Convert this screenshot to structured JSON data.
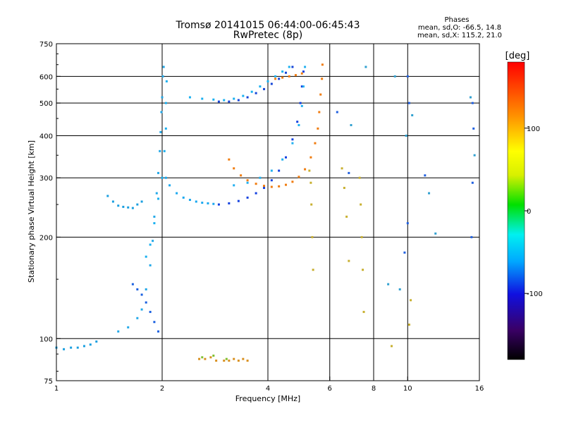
{
  "header": {
    "title_line1": "Tromsø 20141015 06:44:00-06:45:43",
    "title_line2": "RwPretec (8p)",
    "stats_title": "Phases",
    "stats_o": "mean, sd,O: -66.5, 14.8",
    "stats_x": "mean, sd,X: 115.2, 21.0"
  },
  "chart_data": {
    "type": "scatter",
    "xlabel": "Frequency [MHz]",
    "ylabel": "Stationary phase Virtual Height [km]",
    "x_scale": "log",
    "y_scale": "log",
    "xlim": [
      1,
      16
    ],
    "ylim": [
      75,
      750
    ],
    "x_ticks": [
      {
        "value": 1,
        "label": "1"
      },
      {
        "value": 2,
        "label": "2"
      },
      {
        "value": 4,
        "label": "4"
      },
      {
        "value": 6,
        "label": "6"
      },
      {
        "value": 8,
        "label": "8"
      },
      {
        "value": 10,
        "label": "10"
      },
      {
        "value": 16,
        "label": "16"
      }
    ],
    "x_grid": [
      2,
      4,
      6,
      8,
      10
    ],
    "y_ticks": [
      {
        "value": 75,
        "label": "75"
      },
      {
        "value": 100,
        "label": "100"
      },
      {
        "value": 200,
        "label": "200"
      },
      {
        "value": 300,
        "label": "300"
      },
      {
        "value": 400,
        "label": "400"
      },
      {
        "value": 500,
        "label": "500"
      },
      {
        "value": 600,
        "label": "600"
      },
      {
        "value": 750,
        "label": "750"
      }
    ],
    "y_grid": [
      100,
      200,
      300,
      400,
      500,
      600
    ],
    "grid": true,
    "colorbar": {
      "label": "[deg]",
      "range": [
        -180,
        180
      ],
      "ticks": [
        {
          "value": 100,
          "label": "100"
        },
        {
          "value": 0,
          "label": "0"
        },
        {
          "value": -100,
          "label": "-100"
        }
      ],
      "colors": [
        "#000000",
        "#3a0066",
        "#1010e0",
        "#00a8ff",
        "#00f0f0",
        "#00e000",
        "#d8f000",
        "#ffff00",
        "#ff9000",
        "#ff0000"
      ]
    },
    "series": [
      {
        "color": "#1a9fe0",
        "points": [
          [
            1.0,
            94
          ],
          [
            1.05,
            93
          ],
          [
            1.1,
            94
          ],
          [
            1.15,
            94
          ],
          [
            1.2,
            95
          ],
          [
            1.25,
            96
          ],
          [
            1.3,
            98
          ]
        ]
      },
      {
        "color": "#1a9fe0",
        "points": [
          [
            1.4,
            265
          ],
          [
            1.45,
            255
          ],
          [
            1.5,
            248
          ],
          [
            1.55,
            246
          ],
          [
            1.6,
            245
          ],
          [
            1.65,
            244
          ],
          [
            1.7,
            250
          ],
          [
            1.75,
            255
          ]
        ]
      },
      {
        "color": "#22a8e8",
        "points": [
          [
            1.5,
            105
          ],
          [
            1.6,
            108
          ],
          [
            1.7,
            115
          ],
          [
            1.75,
            122
          ],
          [
            1.8,
            140
          ],
          [
            1.85,
            165
          ],
          [
            1.88,
            195
          ],
          [
            1.9,
            230
          ],
          [
            1.93,
            270
          ],
          [
            1.95,
            310
          ],
          [
            1.97,
            360
          ],
          [
            1.98,
            410
          ],
          [
            1.99,
            470
          ],
          [
            2.0,
            520
          ],
          [
            2.01,
            600
          ],
          [
            2.02,
            640
          ]
        ]
      },
      {
        "color": "#1ab0f0",
        "points": [
          [
            1.8,
            175
          ],
          [
            1.85,
            190
          ],
          [
            1.9,
            220
          ],
          [
            1.95,
            260
          ],
          [
            2.0,
            300
          ],
          [
            2.03,
            360
          ],
          [
            2.05,
            420
          ],
          [
            2.05,
            500
          ],
          [
            2.06,
            580
          ]
        ]
      },
      {
        "color": "#1a60e0",
        "points": [
          [
            1.65,
            145
          ],
          [
            1.7,
            140
          ],
          [
            1.75,
            135
          ],
          [
            1.8,
            128
          ],
          [
            1.85,
            120
          ],
          [
            1.9,
            112
          ],
          [
            1.95,
            105
          ]
        ]
      },
      {
        "color": "#1aa8f0",
        "points": [
          [
            2.05,
            300
          ],
          [
            2.1,
            285
          ],
          [
            2.2,
            270
          ],
          [
            2.3,
            262
          ],
          [
            2.4,
            258
          ],
          [
            2.5,
            255
          ],
          [
            2.6,
            253
          ],
          [
            2.7,
            252
          ],
          [
            2.8,
            251
          ]
        ]
      },
      {
        "color": "#1240e0",
        "points": [
          [
            2.9,
            250
          ],
          [
            3.1,
            252
          ],
          [
            3.3,
            256
          ],
          [
            3.5,
            262
          ],
          [
            3.7,
            270
          ],
          [
            3.9,
            280
          ],
          [
            4.1,
            295
          ],
          [
            4.3,
            315
          ],
          [
            4.5,
            345
          ],
          [
            4.7,
            390
          ],
          [
            4.85,
            440
          ],
          [
            4.95,
            500
          ],
          [
            5.0,
            560
          ],
          [
            5.05,
            620
          ]
        ]
      },
      {
        "color": "#22b0f0",
        "points": [
          [
            3.2,
            285
          ],
          [
            3.5,
            290
          ],
          [
            3.8,
            300
          ],
          [
            4.1,
            315
          ],
          [
            4.4,
            340
          ],
          [
            4.7,
            380
          ],
          [
            4.9,
            430
          ],
          [
            5.0,
            490
          ],
          [
            5.05,
            560
          ],
          [
            5.1,
            640
          ]
        ]
      },
      {
        "color": "#1ab0f0",
        "points": [
          [
            2.4,
            520
          ],
          [
            2.6,
            515
          ],
          [
            2.8,
            512
          ],
          [
            3.0,
            510
          ],
          [
            3.2,
            515
          ],
          [
            3.4,
            525
          ],
          [
            3.6,
            540
          ],
          [
            3.8,
            560
          ],
          [
            4.0,
            580
          ],
          [
            4.2,
            600
          ],
          [
            4.4,
            620
          ],
          [
            4.6,
            640
          ]
        ]
      },
      {
        "color": "#1444d8",
        "points": [
          [
            2.9,
            505
          ],
          [
            3.1,
            505
          ],
          [
            3.3,
            510
          ],
          [
            3.5,
            520
          ],
          [
            3.7,
            535
          ],
          [
            3.9,
            550
          ],
          [
            4.1,
            570
          ],
          [
            4.3,
            590
          ],
          [
            4.5,
            615
          ],
          [
            4.7,
            640
          ]
        ]
      },
      {
        "color": "#f07c10",
        "points": [
          [
            3.1,
            340
          ],
          [
            3.2,
            320
          ],
          [
            3.35,
            305
          ],
          [
            3.5,
            295
          ],
          [
            3.7,
            288
          ],
          [
            3.9,
            284
          ],
          [
            4.1,
            282
          ],
          [
            4.3,
            283
          ],
          [
            4.5,
            286
          ],
          [
            4.7,
            292
          ],
          [
            4.9,
            302
          ],
          [
            5.1,
            318
          ],
          [
            5.3,
            345
          ],
          [
            5.45,
            380
          ],
          [
            5.55,
            420
          ],
          [
            5.6,
            470
          ],
          [
            5.65,
            530
          ],
          [
            5.7,
            590
          ],
          [
            5.72,
            650
          ]
        ]
      },
      {
        "color": "#f07c10",
        "points": [
          [
            4.2,
            590
          ],
          [
            4.4,
            595
          ],
          [
            4.6,
            600
          ],
          [
            4.8,
            605
          ],
          [
            5.0,
            612
          ]
        ]
      },
      {
        "color": "#d89020",
        "points": [
          [
            2.55,
            87
          ],
          [
            2.65,
            87
          ],
          [
            2.75,
            88
          ],
          [
            2.85,
            86
          ],
          [
            3.0,
            86
          ],
          [
            3.1,
            86
          ],
          [
            3.2,
            87
          ],
          [
            3.3,
            86
          ],
          [
            3.4,
            87
          ],
          [
            3.5,
            86
          ]
        ]
      },
      {
        "color": "#80c030",
        "points": [
          [
            2.6,
            88
          ],
          [
            2.8,
            89
          ],
          [
            3.05,
            87
          ]
        ]
      },
      {
        "color": "#c8b030",
        "points": [
          [
            5.25,
            315
          ],
          [
            5.3,
            290
          ],
          [
            5.32,
            250
          ],
          [
            5.35,
            200
          ],
          [
            5.38,
            160
          ],
          [
            6.5,
            320
          ],
          [
            6.6,
            280
          ],
          [
            6.7,
            230
          ],
          [
            6.8,
            170
          ],
          [
            7.3,
            300
          ],
          [
            7.35,
            250
          ],
          [
            7.4,
            200
          ],
          [
            7.45,
            160
          ],
          [
            7.5,
            120
          ],
          [
            9.0,
            95
          ],
          [
            10.1,
            110
          ],
          [
            10.2,
            130
          ]
        ]
      },
      {
        "color": "#2060e0",
        "points": [
          [
            6.3,
            470
          ],
          [
            6.8,
            310
          ],
          [
            10.0,
            600
          ],
          [
            10.1,
            500
          ],
          [
            10.0,
            220
          ],
          [
            9.8,
            180
          ],
          [
            11.2,
            305
          ],
          [
            15.3,
            500
          ],
          [
            15.4,
            420
          ],
          [
            15.3,
            290
          ],
          [
            15.2,
            200
          ]
        ]
      },
      {
        "color": "#30a0d0",
        "points": [
          [
            6.9,
            430
          ],
          [
            7.6,
            640
          ],
          [
            9.2,
            600
          ],
          [
            9.9,
            400
          ],
          [
            10.3,
            460
          ],
          [
            11.5,
            270
          ],
          [
            12.0,
            205
          ],
          [
            15.1,
            520
          ],
          [
            15.5,
            350
          ],
          [
            9.5,
            140
          ],
          [
            8.8,
            145
          ]
        ]
      }
    ]
  }
}
